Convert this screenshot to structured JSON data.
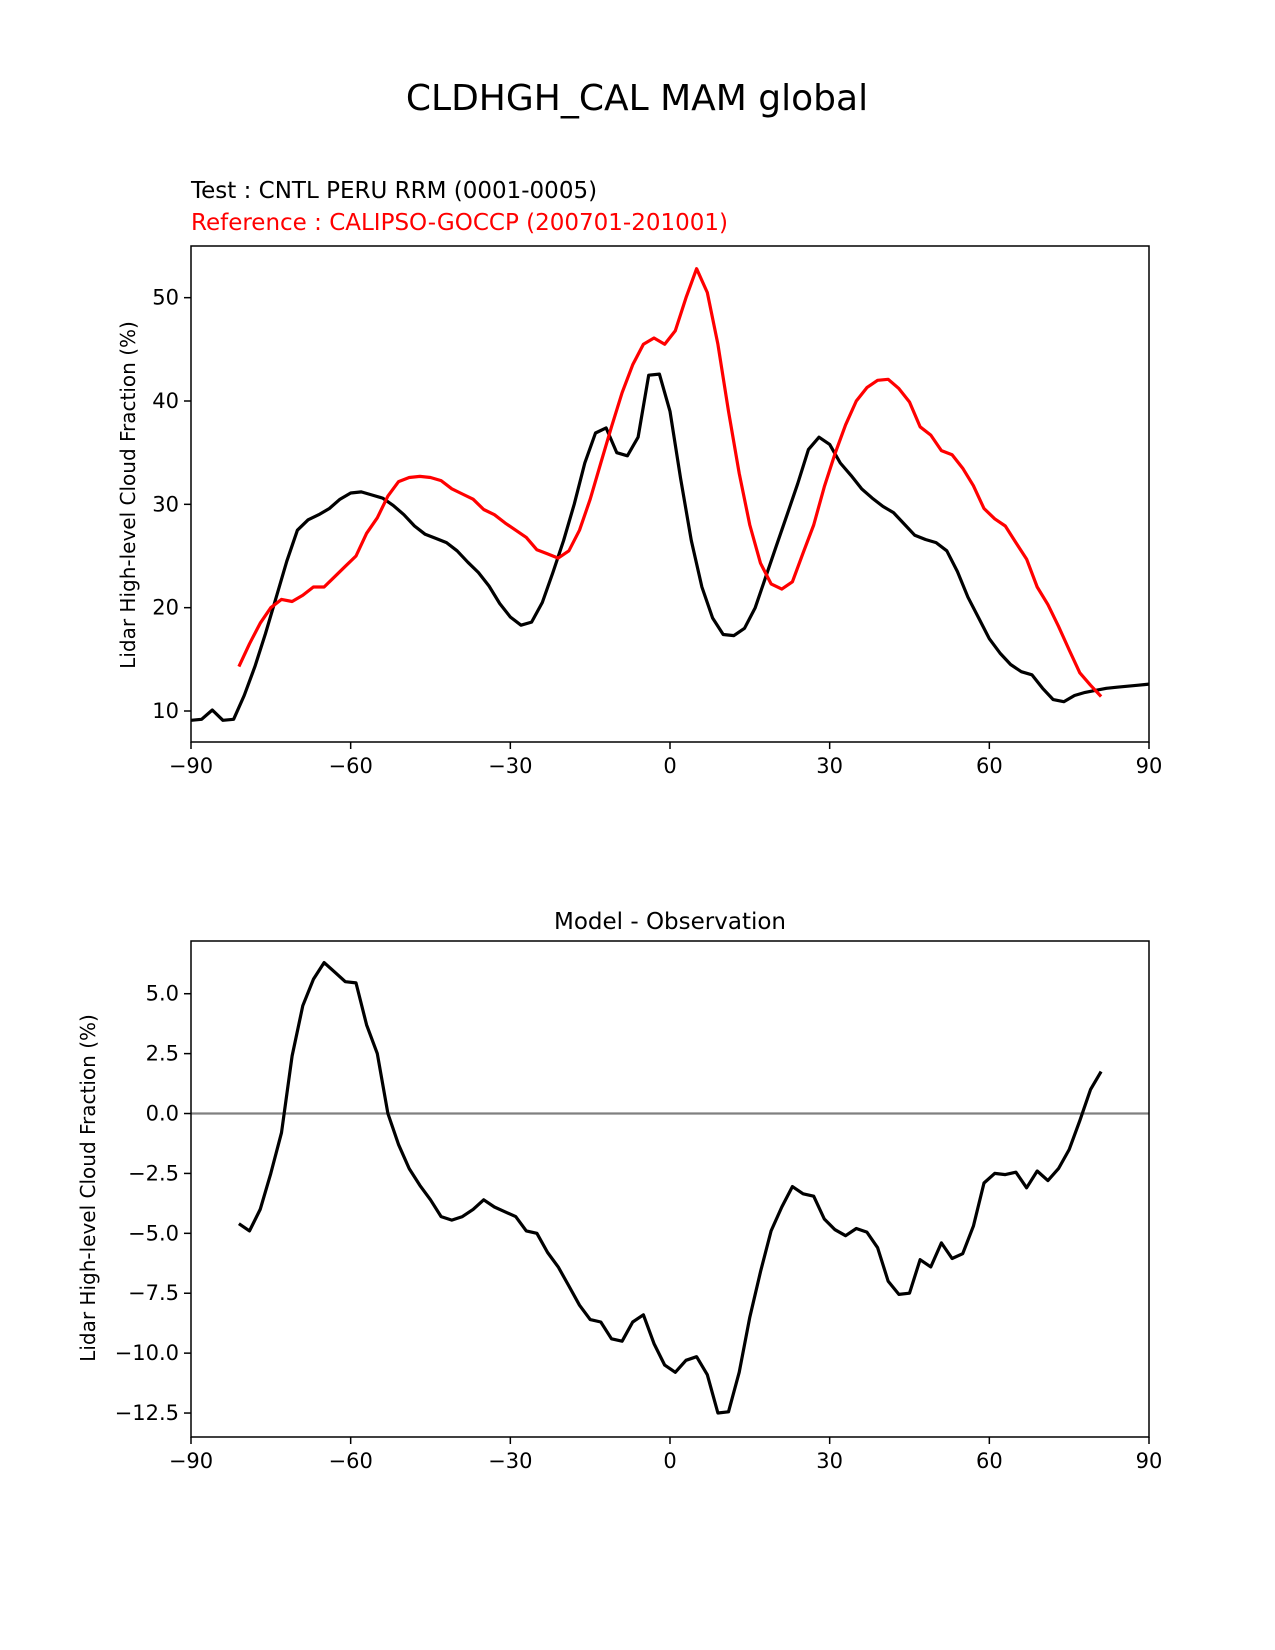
{
  "figure": {
    "title": "CLDHGH_CAL MAM global"
  },
  "colors": {
    "test": "#000000",
    "reference": "#ff0000",
    "zero_line": "#808080"
  },
  "chart_data": [
    {
      "type": "line",
      "test_label": "Test : CNTL PERU RRM (0001-0005)",
      "reference_label": "Reference : CALIPSO-GOCCP (200701-201001)",
      "ylabel": "Lidar High-level Cloud Fraction (%)",
      "xlim": [
        -90,
        90
      ],
      "ylim": [
        7,
        55
      ],
      "xticks": [
        -90,
        -60,
        -30,
        0,
        30,
        60,
        90
      ],
      "xtick_labels": [
        "−90",
        "−60",
        "−30",
        "0",
        "30",
        "60",
        "90"
      ],
      "yticks": [
        10,
        20,
        30,
        40,
        50
      ],
      "ytick_labels": [
        "10",
        "20",
        "30",
        "40",
        "50"
      ],
      "series": [
        {
          "name": "Test",
          "x": [
            -90,
            -88,
            -86,
            -84,
            -82,
            -80,
            -78,
            -76,
            -74,
            -72,
            -70,
            -68,
            -66,
            -64,
            -62,
            -60,
            -58,
            -56,
            -54,
            -52,
            -50,
            -48,
            -46,
            -44,
            -42,
            -40,
            -38,
            -36,
            -34,
            -32,
            -30,
            -28,
            -26,
            -24,
            -22,
            -20,
            -18,
            -16,
            -14,
            -12,
            -10,
            -8,
            -6,
            -4,
            -2,
            0,
            2,
            4,
            6,
            8,
            10,
            12,
            14,
            16,
            18,
            20,
            22,
            24,
            26,
            28,
            30,
            32,
            34,
            36,
            38,
            40,
            42,
            44,
            46,
            48,
            50,
            52,
            54,
            56,
            58,
            60,
            62,
            64,
            66,
            68,
            70,
            72,
            74,
            76,
            78,
            80,
            82,
            84,
            86,
            88,
            90
          ],
          "values": [
            9.1,
            9.2,
            10.1,
            9.1,
            9.2,
            11.5,
            14.3,
            17.5,
            21.0,
            24.5,
            27.5,
            28.5,
            29.0,
            29.6,
            30.5,
            31.1,
            31.2,
            30.9,
            30.6,
            29.9,
            29.0,
            27.9,
            27.1,
            26.7,
            26.3,
            25.5,
            24.4,
            23.4,
            22.1,
            20.4,
            19.1,
            18.3,
            18.6,
            20.5,
            23.4,
            26.5,
            30.0,
            34.0,
            36.9,
            37.4,
            35.0,
            34.7,
            36.5,
            42.5,
            42.6,
            39.0,
            32.5,
            26.5,
            22.0,
            19.0,
            17.4,
            17.3,
            18.0,
            20.0,
            23.0,
            26.0,
            29.0,
            32.0,
            35.3,
            36.5,
            35.8,
            34.0,
            32.8,
            31.5,
            30.6,
            29.8,
            29.2,
            28.1,
            27.0,
            26.6,
            26.3,
            25.5,
            23.5,
            21.0,
            19.0,
            17.0,
            15.6,
            14.5,
            13.8,
            13.5,
            12.2,
            11.1,
            10.9,
            11.5,
            11.8,
            12.0,
            12.2,
            12.3,
            12.4,
            12.5,
            12.6
          ]
        },
        {
          "name": "Reference",
          "x": [
            -81,
            -79,
            -77,
            -75,
            -73,
            -71,
            -69,
            -67,
            -65,
            -63,
            -61,
            -59,
            -57,
            -55,
            -53,
            -51,
            -49,
            -47,
            -45,
            -43,
            -41,
            -39,
            -37,
            -35,
            -33,
            -31,
            -29,
            -27,
            -25,
            -23,
            -21,
            -19,
            -17,
            -15,
            -13,
            -11,
            -9,
            -7,
            -5,
            -3,
            -1,
            1,
            3,
            5,
            7,
            9,
            11,
            13,
            15,
            17,
            19,
            21,
            23,
            25,
            27,
            29,
            31,
            33,
            35,
            37,
            39,
            41,
            43,
            45,
            47,
            49,
            51,
            53,
            55,
            57,
            59,
            61,
            63,
            65,
            67,
            69,
            71,
            73,
            75,
            77,
            79,
            81
          ],
          "values": [
            14.3,
            16.5,
            18.5,
            20.0,
            20.8,
            20.6,
            21.2,
            22.0,
            22.0,
            23.0,
            24.0,
            25.0,
            27.2,
            28.7,
            30.8,
            32.2,
            32.6,
            32.7,
            32.6,
            32.3,
            31.5,
            31.0,
            30.5,
            29.5,
            29.0,
            28.2,
            27.5,
            26.8,
            25.6,
            25.2,
            24.8,
            25.5,
            27.5,
            30.5,
            34.0,
            37.5,
            40.8,
            43.5,
            45.5,
            46.1,
            45.5,
            46.8,
            50.0,
            52.8,
            50.5,
            45.5,
            39.0,
            33.0,
            28.0,
            24.3,
            22.3,
            21.8,
            22.5,
            25.3,
            28.0,
            31.7,
            34.9,
            37.7,
            40.0,
            41.3,
            42.0,
            42.1,
            41.2,
            39.9,
            37.5,
            36.7,
            35.2,
            34.8,
            33.5,
            31.8,
            29.6,
            28.6,
            27.9,
            26.3,
            24.7,
            22.0,
            20.3,
            18.2,
            15.9,
            13.7,
            12.5,
            11.4
          ]
        }
      ]
    },
    {
      "type": "line",
      "subtitle": "Model - Observation",
      "ylabel": "Lidar High-level Cloud Fraction (%)",
      "xlim": [
        -90,
        90
      ],
      "ylim": [
        -13.5,
        7.2
      ],
      "xticks": [
        -90,
        -60,
        -30,
        0,
        30,
        60,
        90
      ],
      "xtick_labels": [
        "−90",
        "−60",
        "−30",
        "0",
        "30",
        "60",
        "90"
      ],
      "yticks": [
        5.0,
        2.5,
        0.0,
        -2.5,
        -5.0,
        -7.5,
        -10.0,
        -12.5
      ],
      "ytick_labels": [
        "5.0",
        "2.5",
        "0.0",
        "−2.5",
        "−5.0",
        "−7.5",
        "−10.0",
        "−12.5"
      ],
      "zero_line": 0,
      "series": [
        {
          "name": "Difference",
          "x": [
            -81,
            -79,
            -77,
            -75,
            -73,
            -71,
            -69,
            -67,
            -65,
            -63,
            -61,
            -59,
            -57,
            -55,
            -53,
            -51,
            -49,
            -47,
            -45,
            -43,
            -41,
            -39,
            -37,
            -35,
            -33,
            -31,
            -29,
            -27,
            -25,
            -23,
            -21,
            -19,
            -17,
            -15,
            -13,
            -11,
            -9,
            -7,
            -5,
            -3,
            -1,
            1,
            3,
            5,
            7,
            9,
            11,
            13,
            15,
            17,
            19,
            21,
            23,
            25,
            27,
            29,
            31,
            33,
            35,
            37,
            39,
            41,
            43,
            45,
            47,
            49,
            51,
            53,
            55,
            57,
            59,
            61,
            63,
            65,
            67,
            69,
            71,
            73,
            75,
            77,
            79,
            81
          ],
          "values": [
            -4.6,
            -4.9,
            -4.0,
            -2.5,
            -0.8,
            2.4,
            4.5,
            5.6,
            6.3,
            5.9,
            5.5,
            5.45,
            3.7,
            2.5,
            0.0,
            -1.3,
            -2.3,
            -3.0,
            -3.6,
            -4.3,
            -4.45,
            -4.3,
            -4.0,
            -3.6,
            -3.9,
            -4.1,
            -4.3,
            -4.9,
            -5.0,
            -5.8,
            -6.4,
            -7.2,
            -8.0,
            -8.6,
            -8.7,
            -9.4,
            -9.5,
            -8.7,
            -8.4,
            -9.6,
            -10.5,
            -10.8,
            -10.3,
            -10.15,
            -10.9,
            -12.5,
            -12.45,
            -10.8,
            -8.5,
            -6.6,
            -4.9,
            -3.9,
            -3.05,
            -3.35,
            -3.45,
            -4.4,
            -4.85,
            -5.1,
            -4.8,
            -4.95,
            -5.6,
            -7.0,
            -7.55,
            -7.5,
            -6.1,
            -6.4,
            -5.4,
            -6.05,
            -5.85,
            -4.7,
            -2.9,
            -2.5,
            -2.55,
            -2.45,
            -3.1,
            -2.4,
            -2.8,
            -2.3,
            -1.5,
            -0.3,
            1.0,
            1.75
          ]
        }
      ]
    }
  ]
}
